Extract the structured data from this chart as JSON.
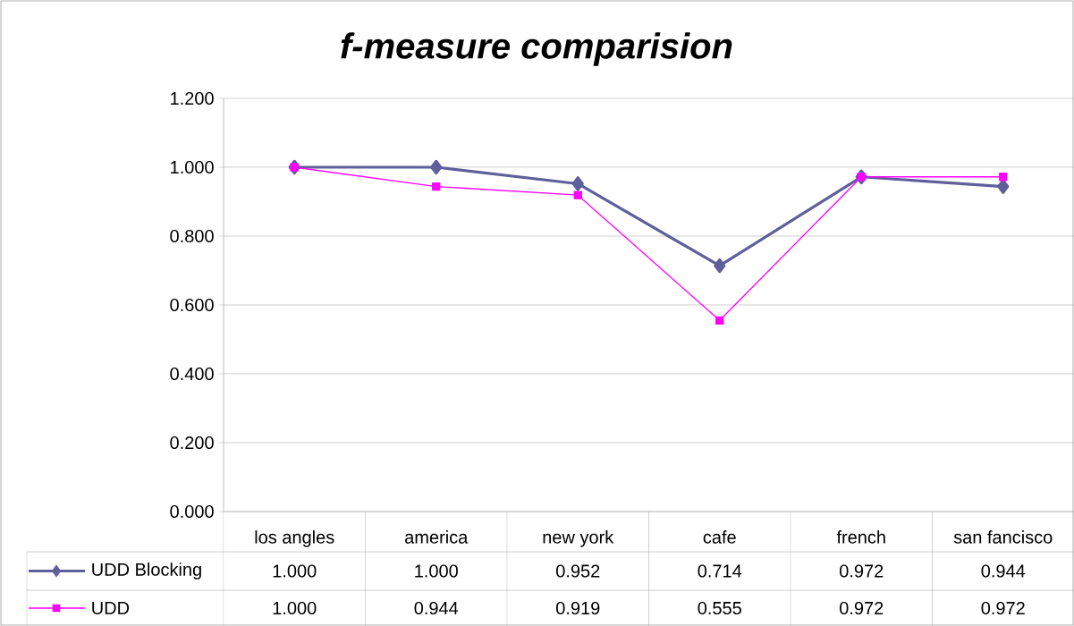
{
  "chart_data": {
    "type": "line",
    "title": "f-measure comparision",
    "categories": [
      "los angles",
      "america",
      "new york",
      "cafe",
      "french",
      "san fancisco"
    ],
    "series": [
      {
        "name": "UDD Blocking",
        "color": "#5f5f9b",
        "marker": "diamond",
        "values": [
          1.0,
          1.0,
          0.952,
          0.714,
          0.972,
          0.944
        ],
        "value_labels": [
          "1.000",
          "1.000",
          "0.952",
          "0.714",
          "0.972",
          "0.944"
        ]
      },
      {
        "name": "UDD",
        "color": "#ff00ff",
        "marker": "square",
        "values": [
          1.0,
          0.944,
          0.919,
          0.555,
          0.972,
          0.972
        ],
        "value_labels": [
          "1.000",
          "0.944",
          "0.919",
          "0.555",
          "0.972",
          "0.972"
        ]
      }
    ],
    "ylim": [
      0,
      1.2
    ],
    "yticks": [
      {
        "value": 0,
        "label": "0.000"
      },
      {
        "value": 0.2,
        "label": "0.200"
      },
      {
        "value": 0.4,
        "label": "0.400"
      },
      {
        "value": 0.6,
        "label": "0.600"
      },
      {
        "value": 0.8,
        "label": "0.800"
      },
      {
        "value": 1.0,
        "label": "1.000"
      },
      {
        "value": 1.2,
        "label": "1.200"
      }
    ],
    "grid": "y",
    "legend": "bottom"
  }
}
